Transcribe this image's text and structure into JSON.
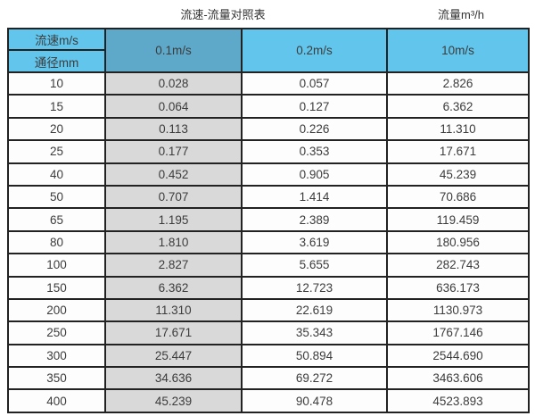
{
  "page": {
    "title": "流速-流量对照表",
    "unit_label": "流量m³/h"
  },
  "table": {
    "corner": {
      "velocity_label": "流速m/s",
      "diameter_label": "通径mm"
    },
    "velocity_headers": [
      "0.1m/s",
      "0.2m/s",
      "10m/s"
    ],
    "highlighted_column": "0.1m/s",
    "rows": [
      [
        "10",
        "0.028",
        "0.057",
        "2.826"
      ],
      [
        "15",
        "0.064",
        "0.127",
        "6.362"
      ],
      [
        "20",
        "0.113",
        "0.226",
        "11.310"
      ],
      [
        "25",
        "0.177",
        "0.353",
        "17.671"
      ],
      [
        "40",
        "0.452",
        "0.905",
        "45.239"
      ],
      [
        "50",
        "0.707",
        "1.414",
        "70.686"
      ],
      [
        "65",
        "1.195",
        "2.389",
        "119.459"
      ],
      [
        "80",
        "1.810",
        "3.619",
        "180.956"
      ],
      [
        "100",
        "2.827",
        "5.655",
        "282.743"
      ],
      [
        "150",
        "6.362",
        "12.723",
        "636.173"
      ],
      [
        "200",
        "11.310",
        "22.619",
        "1130.973"
      ],
      [
        "250",
        "17.671",
        "35.343",
        "1767.146"
      ],
      [
        "300",
        "25.447",
        "50.894",
        "2544.690"
      ],
      [
        "350",
        "34.636",
        "69.272",
        "3463.606"
      ],
      [
        "400",
        "45.239",
        "90.478",
        "4523.893"
      ]
    ]
  },
  "colors": {
    "header_blue": "#62C5EC",
    "highlight_blue": "#5EA9CA",
    "gray_column": "#D9D9D9",
    "white_cell": "#FDFDFD",
    "border": "#222222",
    "text": "#3C3C3C"
  }
}
